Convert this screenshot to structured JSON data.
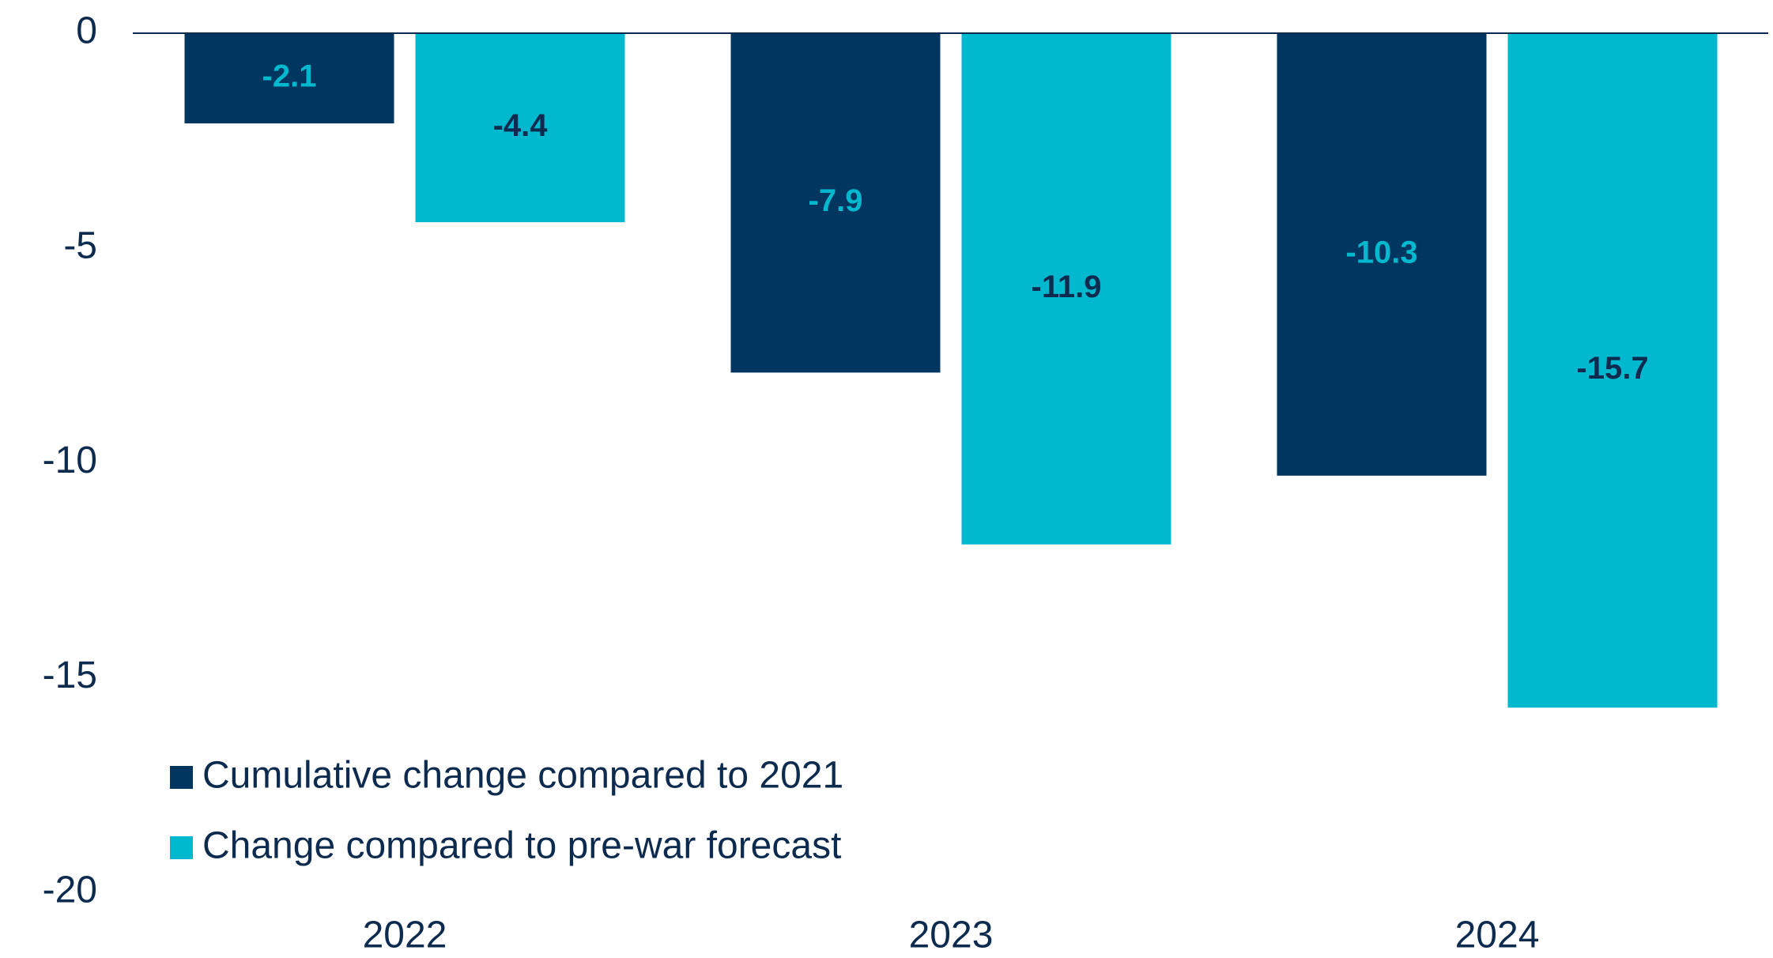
{
  "chart_data": {
    "type": "bar",
    "categories": [
      "2022",
      "2023",
      "2024"
    ],
    "series": [
      {
        "name": "Cumulative change compared to 2021",
        "color": "#003660",
        "label_color": "#00b9ce",
        "values": [
          -2.1,
          -7.9,
          -10.3
        ]
      },
      {
        "name": "Change compared to pre-war forecast",
        "color": "#00b9ce",
        "label_color": "#0d2b4e",
        "values": [
          -4.4,
          -11.9,
          -15.7
        ]
      }
    ],
    "ylim": [
      -20,
      0
    ],
    "yticks": [
      0,
      -5,
      -10,
      -15,
      -20
    ],
    "grid": false,
    "legend": "lower left"
  }
}
